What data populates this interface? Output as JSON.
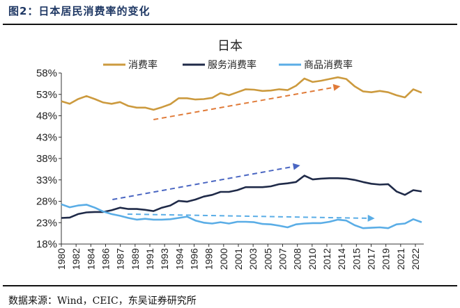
{
  "figure": {
    "caption": "图2：日本居民消费率的变化",
    "source": "数据来源：Wind，CEIC，东吴证券研究所"
  },
  "chart_data": {
    "type": "line",
    "title": "日本",
    "xlabel": "",
    "ylabel": "",
    "legend_position": "top",
    "grid": false,
    "ylim": [
      18,
      58
    ],
    "y_ticks": [
      "18%",
      "23%",
      "28%",
      "33%",
      "38%",
      "43%",
      "48%",
      "53%",
      "58%"
    ],
    "y_tick_values": [
      18,
      23,
      28,
      33,
      38,
      43,
      48,
      53,
      58
    ],
    "x": [
      1980,
      1981,
      1982,
      1983,
      1984,
      1985,
      1986,
      1987,
      1988,
      1989,
      1990,
      1991,
      1992,
      1993,
      1994,
      1995,
      1996,
      1997,
      1998,
      1999,
      2000,
      2001,
      2002,
      2003,
      2004,
      2005,
      2006,
      2007,
      2008,
      2009,
      2010,
      2011,
      2012,
      2013,
      2014,
      2015,
      2016,
      2017,
      2018,
      2019,
      2020,
      2021,
      2022,
      2023
    ],
    "x_tick_labels": [
      "1980",
      "1982",
      "1984",
      "1986",
      "1987",
      "1989",
      "1991",
      "1993",
      "1994",
      "1996",
      "1998",
      "2000",
      "2001",
      "2003",
      "2005",
      "2007",
      "2008",
      "2010",
      "2012",
      "2014",
      "2015",
      "2017",
      "2019",
      "2021",
      "2022"
    ],
    "series": [
      {
        "name": "消费率",
        "color": "#CC9A3E",
        "values": [
          51.4,
          50.8,
          51.9,
          52.6,
          51.9,
          51.1,
          50.8,
          51.2,
          50.3,
          49.9,
          49.9,
          49.4,
          50.0,
          50.7,
          52.1,
          52.1,
          51.8,
          51.9,
          52.2,
          53.3,
          52.8,
          53.5,
          54.2,
          54.1,
          53.8,
          53.9,
          54.2,
          54.0,
          55.0,
          56.7,
          55.9,
          56.2,
          56.6,
          57.0,
          56.6,
          54.9,
          53.7,
          53.5,
          53.8,
          53.5,
          52.8,
          52.3,
          54.2,
          53.4
        ]
      },
      {
        "name": "服务消费率",
        "color": "#1F2A48",
        "values": [
          24.1,
          24.2,
          25.0,
          25.4,
          25.5,
          25.5,
          25.9,
          26.5,
          26.2,
          26.2,
          26.0,
          25.7,
          26.5,
          27.0,
          28.1,
          27.9,
          28.4,
          29.1,
          29.5,
          30.2,
          30.2,
          30.6,
          31.3,
          31.3,
          31.3,
          31.5,
          32.0,
          32.2,
          32.5,
          34.0,
          33.1,
          33.3,
          33.4,
          33.4,
          33.3,
          33.0,
          32.5,
          32.1,
          31.9,
          32.0,
          30.3,
          29.5,
          30.6,
          30.3
        ]
      },
      {
        "name": "商品消费率",
        "color": "#5AADE6",
        "values": [
          27.3,
          26.6,
          27.0,
          27.2,
          26.5,
          25.6,
          25.0,
          24.6,
          24.1,
          23.7,
          23.9,
          23.7,
          23.7,
          23.8,
          24.1,
          24.4,
          23.5,
          23.0,
          22.8,
          23.1,
          22.8,
          23.2,
          23.2,
          23.1,
          22.7,
          22.6,
          22.3,
          21.9,
          22.6,
          22.8,
          22.9,
          22.9,
          23.2,
          23.7,
          23.5,
          22.4,
          21.7,
          21.8,
          21.9,
          21.7,
          22.6,
          22.8,
          23.8,
          23.1
        ]
      }
    ],
    "annotations": [
      {
        "type": "dashed-arrow",
        "color": "#E07B39",
        "from": [
          1991,
          47.1
        ],
        "to": [
          2013.3,
          54.9
        ]
      },
      {
        "type": "dashed-arrow",
        "color": "#4A66C2",
        "from": [
          1986.1,
          28.4
        ],
        "to": [
          2008.5,
          36.4
        ]
      },
      {
        "type": "dashed-arrow",
        "color": "#5AADE6",
        "from": [
          1987.9,
          25.0
        ],
        "to": [
          2017.4,
          24.0
        ]
      }
    ]
  }
}
